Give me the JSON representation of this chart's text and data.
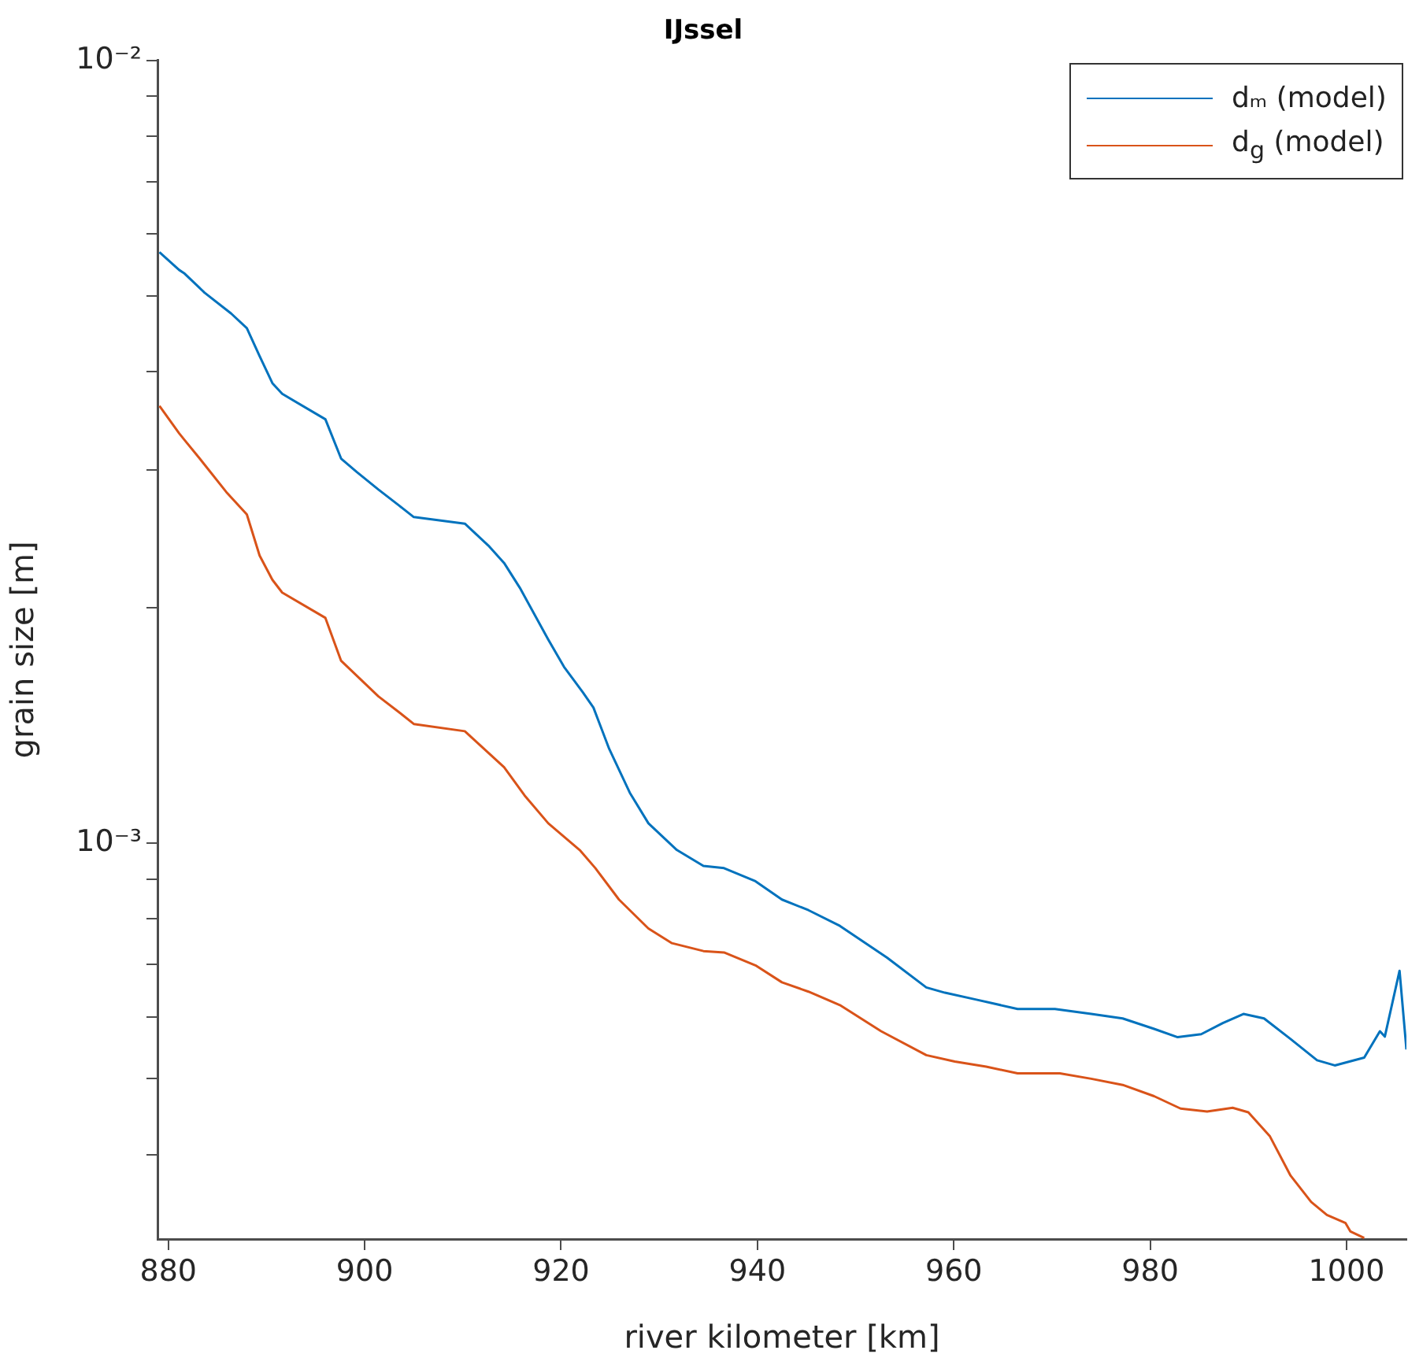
{
  "chart_data": {
    "type": "line",
    "title": "IJssel",
    "xlabel": "river kilometer [km]",
    "ylabel": "grain size [m]",
    "xlim": [
      878.9,
      1006.1
    ],
    "xticks": [
      880,
      900,
      920,
      940,
      960,
      980,
      1000
    ],
    "ylim": [
      0.000312,
      0.01
    ],
    "yticks": [
      {
        "value": 0.0004,
        "label": null
      },
      {
        "value": 0.0005,
        "label": null
      },
      {
        "value": 0.0006,
        "label": null
      },
      {
        "value": 0.0007,
        "label": null
      },
      {
        "value": 0.0008,
        "label": null
      },
      {
        "value": 0.0009,
        "label": null
      },
      {
        "value": 0.001,
        "label": "10⁻³"
      },
      {
        "value": 0.002,
        "label": null
      },
      {
        "value": 0.003,
        "label": null
      },
      {
        "value": 0.004,
        "label": null
      },
      {
        "value": 0.005,
        "label": null
      },
      {
        "value": 0.006,
        "label": null
      },
      {
        "value": 0.007,
        "label": null
      },
      {
        "value": 0.008,
        "label": null
      },
      {
        "value": 0.009,
        "label": null
      },
      {
        "value": 0.01,
        "label": "10⁻²"
      }
    ],
    "log": "y",
    "grid": false,
    "legend": "top right",
    "marker": "none",
    "line_style": "solid",
    "series": [
      {
        "name": "dₘ (model)",
        "color": "#0072bd",
        "x": [
          879.1,
          881.1,
          881.6,
          883.7,
          886.4,
          888.0,
          889.3,
          890.6,
          891.6,
          896.0,
          897.6,
          899.2,
          901.4,
          903.5,
          905.0,
          910.2,
          912.6,
          914.2,
          915.8,
          918.7,
          920.3,
          922.2,
          923.3,
          924.9,
          927.0,
          928.9,
          931.8,
          934.5,
          936.6,
          939.8,
          942.5,
          945.2,
          948.4,
          953.2,
          957.2,
          959.1,
          962.3,
          966.5,
          970.3,
          974.0,
          977.2,
          980.4,
          982.8,
          985.2,
          987.4,
          989.5,
          991.6,
          994.3,
          997.0,
          998.8,
          1001.8,
          1003.4,
          1003.9,
          1005.4,
          1006.1
        ],
        "values": [
          0.00569,
          0.0054,
          0.00535,
          0.00505,
          0.00475,
          0.00455,
          0.00419,
          0.00387,
          0.00375,
          0.00348,
          0.0031,
          0.00298,
          0.00283,
          0.0027,
          0.00261,
          0.00256,
          0.0024,
          0.00228,
          0.00212,
          0.00182,
          0.00168,
          0.00156,
          0.00149,
          0.00132,
          0.00116,
          0.00106,
          0.00098,
          0.000935,
          0.000929,
          0.000894,
          0.000847,
          0.000821,
          0.000784,
          0.000714,
          0.000654,
          0.000644,
          0.000631,
          0.000614,
          0.000614,
          0.000605,
          0.000597,
          0.000579,
          0.000565,
          0.00057,
          0.000589,
          0.000605,
          0.000597,
          0.000562,
          0.000528,
          0.00052,
          0.000532,
          0.000575,
          0.000566,
          0.000687,
          0.000545
        ]
      },
      {
        "name": "d$_{g}$ (model)",
        "color": "#d95319",
        "x": [
          879.1,
          881.1,
          881.6,
          883.2,
          885.9,
          888.0,
          889.3,
          890.6,
          891.6,
          896.0,
          897.6,
          901.4,
          903.5,
          905.0,
          910.2,
          914.2,
          916.3,
          918.7,
          921.9,
          923.5,
          925.9,
          928.9,
          931.3,
          934.5,
          936.6,
          939.8,
          942.5,
          945.2,
          948.4,
          952.6,
          957.2,
          960.1,
          963.3,
          966.5,
          970.8,
          974.0,
          977.2,
          980.4,
          983.1,
          985.8,
          988.4,
          990.0,
          992.2,
          994.3,
          996.4,
          998.0,
          999.9,
          1000.4,
          1001.8
        ],
        "values": [
          0.00362,
          0.00334,
          0.00328,
          0.0031,
          0.00281,
          0.00263,
          0.00233,
          0.00217,
          0.00209,
          0.00194,
          0.00171,
          0.00154,
          0.00147,
          0.00142,
          0.00139,
          0.00125,
          0.00115,
          0.00106,
          0.00098,
          0.000929,
          0.000847,
          0.000778,
          0.000745,
          0.000728,
          0.000725,
          0.000698,
          0.000664,
          0.000646,
          0.000621,
          0.000575,
          0.000536,
          0.000526,
          0.000518,
          0.000508,
          0.000508,
          0.0005,
          0.000491,
          0.000475,
          0.000458,
          0.000454,
          0.000459,
          0.000453,
          0.000422,
          0.000376,
          0.000348,
          0.000335,
          0.000327,
          0.000319,
          0.000313
        ]
      }
    ]
  }
}
